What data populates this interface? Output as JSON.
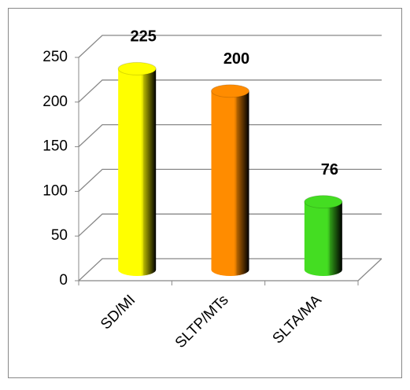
{
  "chart_data": {
    "type": "bar",
    "categories": [
      "SD/MI",
      "SLTP/MTs",
      "SLTA/MA"
    ],
    "values": [
      225,
      200,
      76
    ],
    "colors": [
      "#ffff00",
      "#ff8c00",
      "#44dd22"
    ],
    "ylim": [
      0,
      250
    ],
    "yticks": [
      0,
      50,
      100,
      150,
      200,
      250
    ],
    "grid": true
  }
}
